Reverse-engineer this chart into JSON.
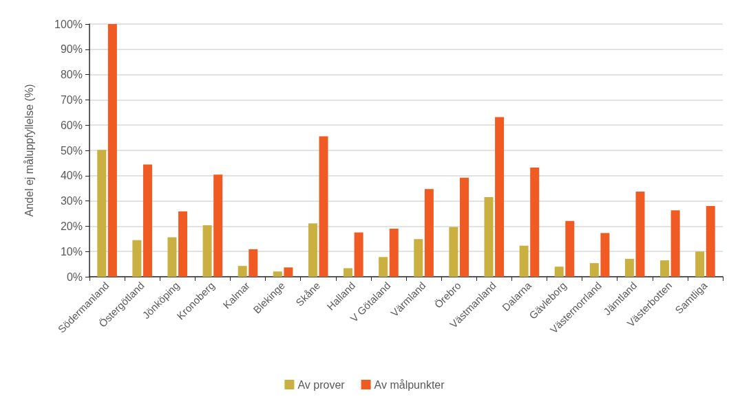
{
  "chart_data": {
    "type": "bar",
    "ylabel": "Andel ej måluppfyllelse (%)",
    "categories": [
      "Södermanland",
      "Östergötland",
      "Jönköping",
      "Kronoberg",
      "Kalmar",
      "Blekinge",
      "Skåne",
      "Halland",
      "V Götaland",
      "Värmland",
      "Örebro",
      "Västmanland",
      "Dalarna",
      "Gävleborg",
      "Västernorrland",
      "Jämtland",
      "Västerbotten",
      "Samtliga"
    ],
    "series": [
      {
        "name": "Av prover",
        "color": "#c9b041",
        "values": [
          50.2,
          14.5,
          15.6,
          20.4,
          4.3,
          2.1,
          21.1,
          3.4,
          7.8,
          14.9,
          19.7,
          31.5,
          12.3,
          4.0,
          5.4,
          7.1,
          6.5,
          10.0
        ]
      },
      {
        "name": "Av målpunkter",
        "color": "#f05a23",
        "values": [
          100,
          44.4,
          25.9,
          40.4,
          10.9,
          3.7,
          55.6,
          17.5,
          19.0,
          34.7,
          39.2,
          63.2,
          43.2,
          22.1,
          17.3,
          33.7,
          26.3,
          28.0
        ]
      }
    ],
    "ylim": [
      0,
      100
    ],
    "yticks": [
      {
        "value": 0,
        "label": "0%"
      },
      {
        "value": 10,
        "label": "10%"
      },
      {
        "value": 20,
        "label": "20%"
      },
      {
        "value": 30,
        "label": "30%"
      },
      {
        "value": 40,
        "label": "40%"
      },
      {
        "value": 50,
        "label": "50%"
      },
      {
        "value": 60,
        "label": "60%"
      },
      {
        "value": 70,
        "label": "70%"
      },
      {
        "value": 80,
        "label": "80%"
      },
      {
        "value": 90,
        "label": "90%"
      },
      {
        "value": 100,
        "label": "100%"
      }
    ],
    "grid": "y",
    "legend": "bottom"
  }
}
